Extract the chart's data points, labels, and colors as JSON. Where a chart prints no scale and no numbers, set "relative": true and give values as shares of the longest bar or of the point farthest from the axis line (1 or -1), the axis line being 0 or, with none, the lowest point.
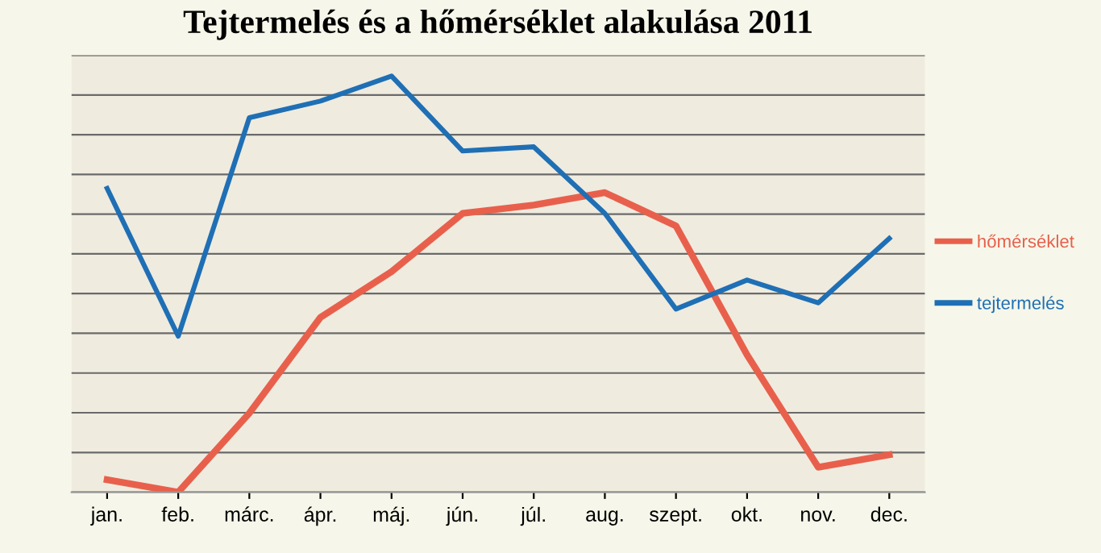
{
  "chart_data": {
    "type": "line",
    "title": "Tejtermelés és a hőmérséklet alakulása 2011",
    "categories": [
      "jan.",
      "feb.",
      "márc.",
      "ápr.",
      "máj.",
      "jún.",
      "júl.",
      "aug.",
      "szept.",
      "okt.",
      "nov.",
      "dec."
    ],
    "relative": true,
    "grid": "y",
    "legend": "right",
    "marker": "none",
    "line_style": "solid",
    "series": [
      {
        "name": "hőmérséklet",
        "color": "#e8604c",
        "values": [
          0.03,
          0.0,
          0.19,
          0.42,
          0.53,
          0.67,
          0.69,
          0.72,
          0.64,
          0.33,
          0.06,
          0.09
        ]
      },
      {
        "name": "tejtermelés",
        "color": "#1f6fb5",
        "values": [
          0.73,
          0.375,
          0.9,
          0.94,
          1.0,
          0.82,
          0.83,
          0.67,
          0.44,
          0.51,
          0.455,
          0.61
        ]
      }
    ]
  }
}
